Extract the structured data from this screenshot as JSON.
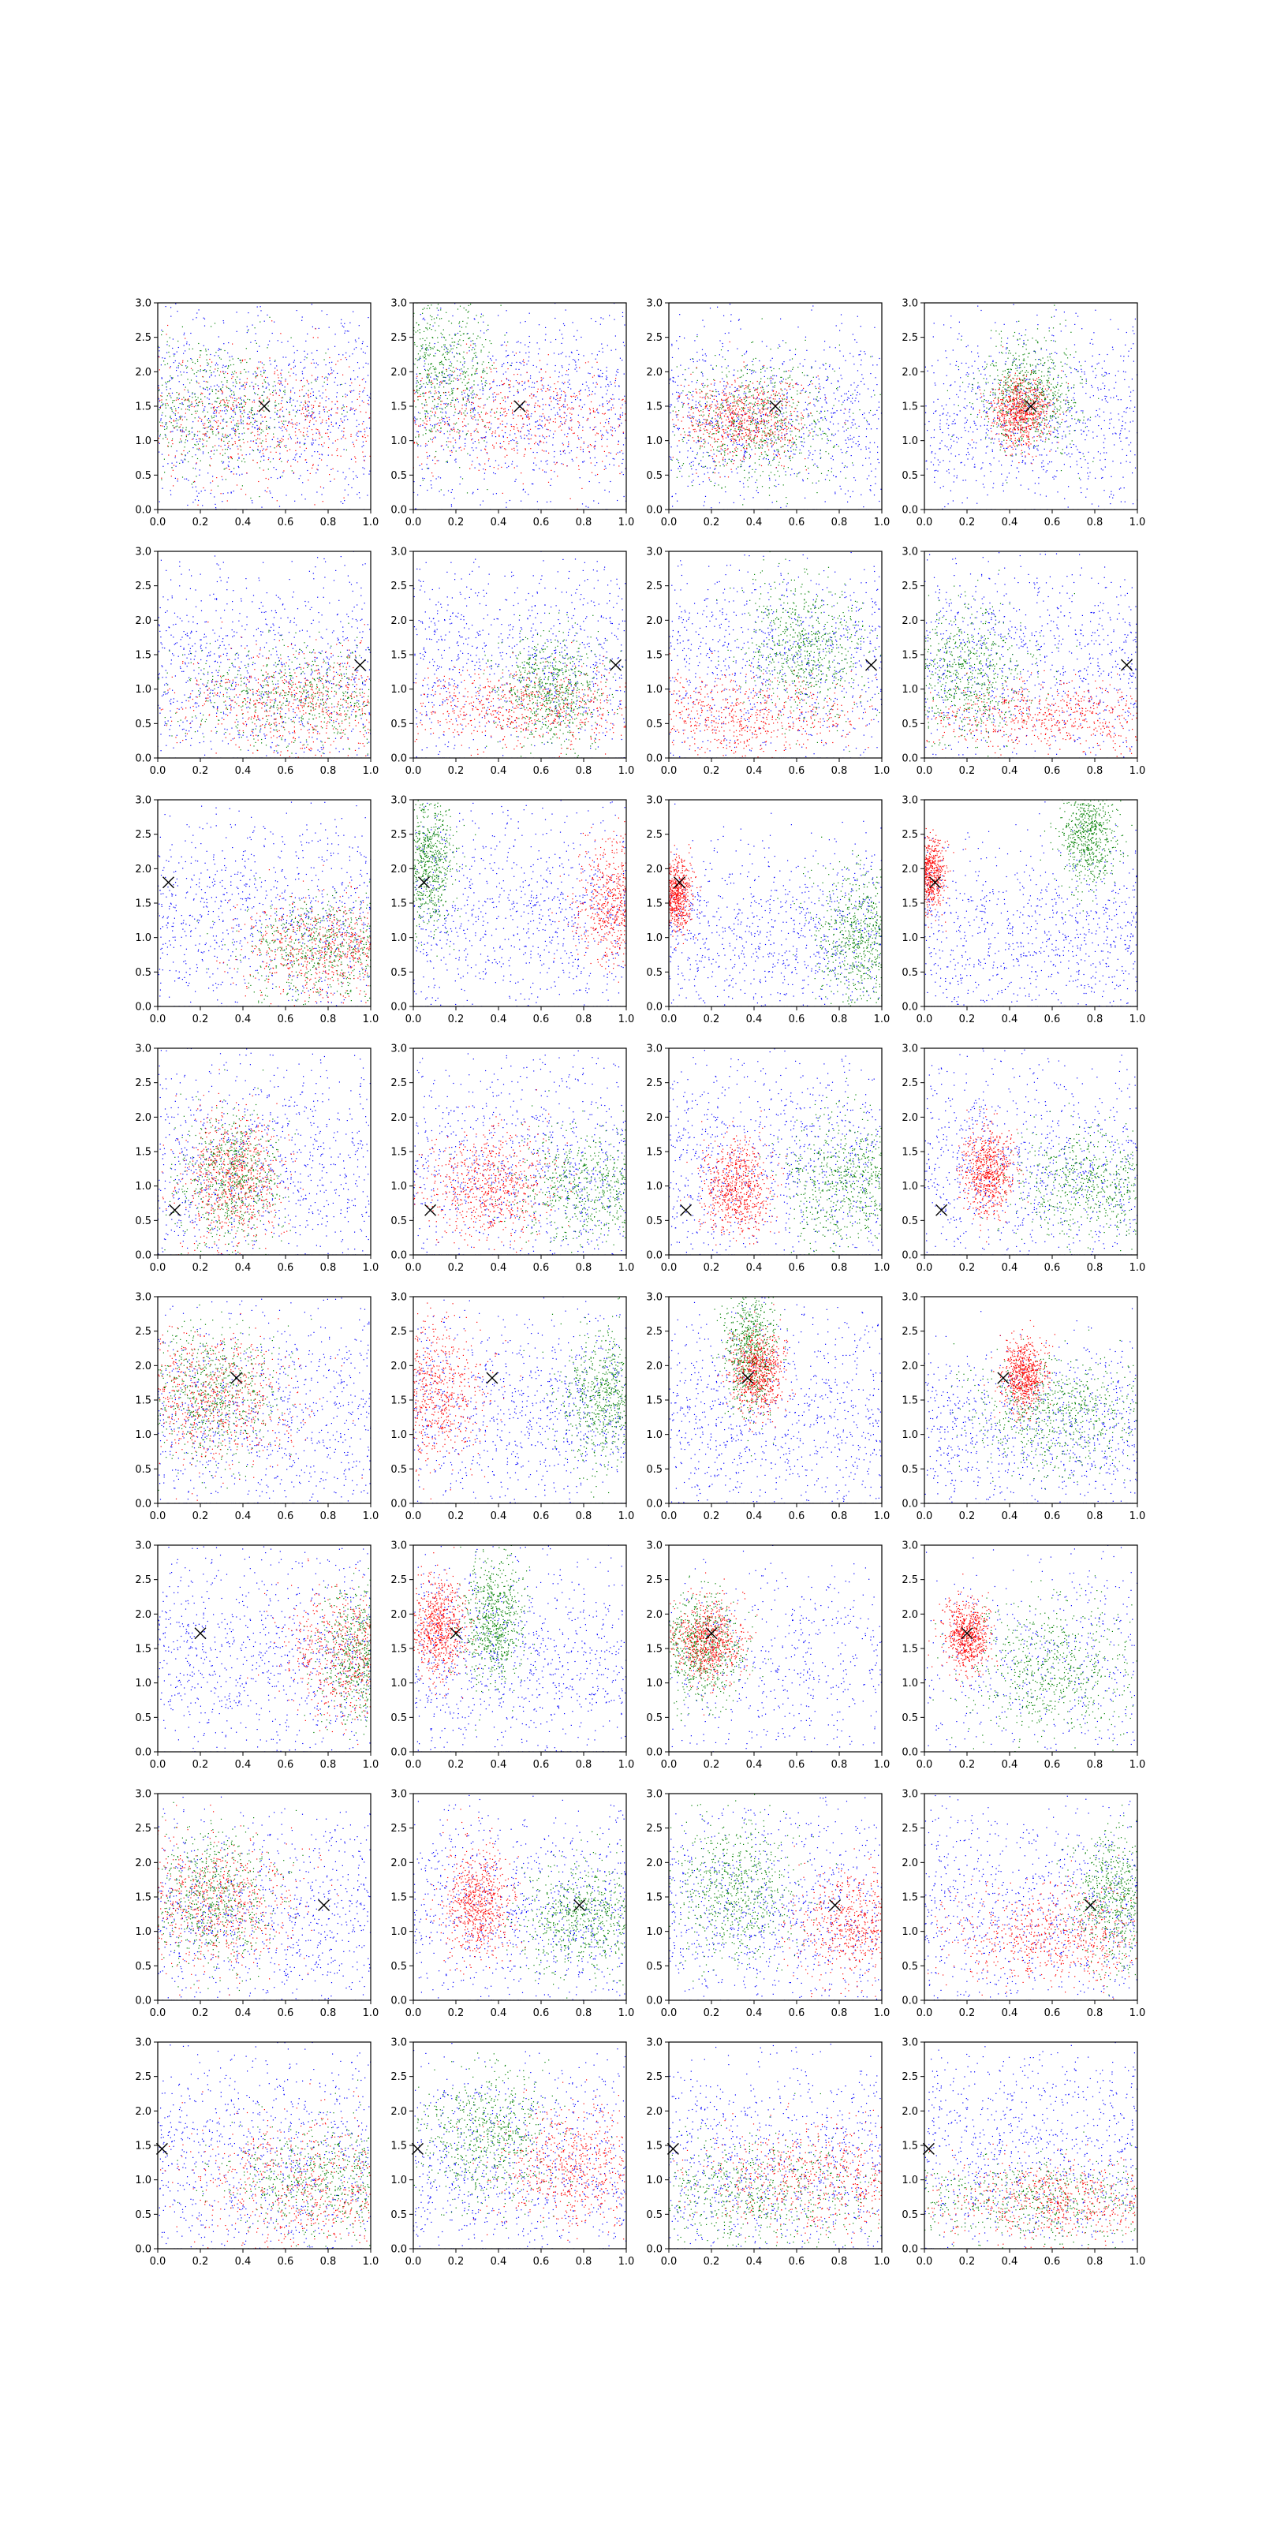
{
  "chart_data": {
    "type": "scatter",
    "layout": {
      "rows": 8,
      "cols": 4
    },
    "xlim": [
      0.0,
      1.0
    ],
    "ylim": [
      0.0,
      3.0
    ],
    "xticks": [
      "0.0",
      "0.2",
      "0.4",
      "0.6",
      "0.8",
      "1.0"
    ],
    "yticks": [
      "0.0",
      "0.5",
      "1.0",
      "1.5",
      "2.0",
      "2.5",
      "3.0"
    ],
    "grid": false,
    "colors": {
      "series_a": "#0000ff",
      "series_b": "#008000",
      "series_c": "#ff0000",
      "marker": "#000000"
    },
    "marker_symbol": "x",
    "panels": [
      {
        "row": 1,
        "col": 1,
        "marker": [
          0.5,
          1.5
        ],
        "clusters": {
          "blue": [
            0.5,
            1.5,
            0.5,
            1.0
          ],
          "green": [
            0.2,
            1.5,
            0.3,
            0.5
          ],
          "red": [
            0.5,
            1.3,
            0.4,
            0.5
          ]
        }
      },
      {
        "row": 1,
        "col": 2,
        "marker": [
          0.5,
          1.5
        ],
        "clusters": {
          "blue": [
            0.5,
            1.5,
            0.5,
            1.0
          ],
          "green": [
            0.1,
            2.0,
            0.15,
            0.5
          ],
          "red": [
            0.5,
            1.3,
            0.4,
            0.4
          ]
        }
      },
      {
        "row": 1,
        "col": 3,
        "marker": [
          0.5,
          1.5
        ],
        "clusters": {
          "blue": [
            0.6,
            1.3,
            0.5,
            0.9
          ],
          "green": [
            0.4,
            1.3,
            0.2,
            0.5
          ],
          "red": [
            0.35,
            1.3,
            0.15,
            0.3
          ]
        }
      },
      {
        "row": 1,
        "col": 4,
        "marker": [
          0.5,
          1.5
        ],
        "clusters": {
          "blue": [
            0.5,
            1.3,
            0.5,
            0.9
          ],
          "green": [
            0.5,
            1.7,
            0.12,
            0.4
          ],
          "red": [
            0.45,
            1.4,
            0.07,
            0.25
          ]
        }
      },
      {
        "row": 2,
        "col": 1,
        "marker": [
          0.95,
          1.35
        ],
        "clusters": {
          "blue": [
            0.5,
            1.3,
            0.5,
            1.0
          ],
          "green": [
            0.7,
            0.9,
            0.3,
            0.4
          ],
          "red": [
            0.7,
            0.8,
            0.3,
            0.4
          ]
        }
      },
      {
        "row": 2,
        "col": 2,
        "marker": [
          0.95,
          1.35
        ],
        "clusters": {
          "blue": [
            0.5,
            1.4,
            0.5,
            1.0
          ],
          "green": [
            0.65,
            1.0,
            0.12,
            0.4
          ],
          "red": [
            0.5,
            0.7,
            0.35,
            0.3
          ]
        }
      },
      {
        "row": 2,
        "col": 3,
        "marker": [
          0.95,
          1.35
        ],
        "clusters": {
          "blue": [
            0.5,
            1.4,
            0.5,
            1.0
          ],
          "green": [
            0.65,
            1.6,
            0.15,
            0.5
          ],
          "red": [
            0.3,
            0.6,
            0.3,
            0.3
          ]
        }
      },
      {
        "row": 2,
        "col": 4,
        "marker": [
          0.95,
          1.35
        ],
        "clusters": {
          "blue": [
            0.5,
            1.4,
            0.5,
            1.0
          ],
          "green": [
            0.2,
            1.2,
            0.15,
            0.5
          ],
          "red": [
            0.6,
            0.6,
            0.35,
            0.25
          ]
        }
      },
      {
        "row": 3,
        "col": 1,
        "marker": [
          0.05,
          1.8
        ],
        "clusters": {
          "blue": [
            0.5,
            1.3,
            0.5,
            1.0
          ],
          "green": [
            0.8,
            0.8,
            0.2,
            0.4
          ],
          "red": [
            0.8,
            0.8,
            0.2,
            0.4
          ]
        }
      },
      {
        "row": 3,
        "col": 2,
        "marker": [
          0.05,
          1.8
        ],
        "clusters": {
          "blue": [
            0.5,
            1.4,
            0.5,
            1.0
          ],
          "green": [
            0.07,
            2.1,
            0.06,
            0.45
          ],
          "red": [
            0.95,
            1.5,
            0.1,
            0.45
          ]
        }
      },
      {
        "row": 3,
        "col": 3,
        "marker": [
          0.05,
          1.8
        ],
        "clusters": {
          "blue": [
            0.5,
            1.0,
            0.5,
            0.8
          ],
          "green": [
            0.9,
            1.0,
            0.1,
            0.5
          ],
          "red": [
            0.03,
            1.6,
            0.04,
            0.25
          ]
        }
      },
      {
        "row": 3,
        "col": 4,
        "marker": [
          0.05,
          1.8
        ],
        "clusters": {
          "blue": [
            0.5,
            1.0,
            0.5,
            0.9
          ],
          "green": [
            0.77,
            2.5,
            0.06,
            0.4
          ],
          "red": [
            0.02,
            1.9,
            0.04,
            0.25
          ]
        }
      },
      {
        "row": 4,
        "col": 1,
        "marker": [
          0.08,
          0.65
        ],
        "clusters": {
          "blue": [
            0.5,
            1.3,
            0.5,
            1.0
          ],
          "green": [
            0.35,
            1.1,
            0.12,
            0.5
          ],
          "red": [
            0.35,
            1.1,
            0.12,
            0.5
          ]
        }
      },
      {
        "row": 4,
        "col": 2,
        "marker": [
          0.08,
          0.65
        ],
        "clusters": {
          "blue": [
            0.5,
            1.3,
            0.5,
            1.0
          ],
          "green": [
            0.85,
            1.0,
            0.2,
            0.4
          ],
          "red": [
            0.35,
            1.0,
            0.15,
            0.4
          ]
        }
      },
      {
        "row": 4,
        "col": 3,
        "marker": [
          0.08,
          0.65
        ],
        "clusters": {
          "blue": [
            0.5,
            1.3,
            0.5,
            1.0
          ],
          "green": [
            0.85,
            1.1,
            0.15,
            0.45
          ],
          "red": [
            0.32,
            1.0,
            0.08,
            0.35
          ]
        }
      },
      {
        "row": 4,
        "col": 4,
        "marker": [
          0.08,
          0.65
        ],
        "clusters": {
          "blue": [
            0.5,
            1.3,
            0.5,
            1.0
          ],
          "green": [
            0.8,
            1.0,
            0.2,
            0.4
          ],
          "red": [
            0.3,
            1.2,
            0.06,
            0.3
          ]
        }
      },
      {
        "row": 5,
        "col": 1,
        "marker": [
          0.37,
          1.82
        ],
        "clusters": {
          "blue": [
            0.5,
            1.2,
            0.5,
            1.0
          ],
          "green": [
            0.25,
            1.6,
            0.15,
            0.5
          ],
          "red": [
            0.25,
            1.5,
            0.2,
            0.5
          ]
        }
      },
      {
        "row": 5,
        "col": 2,
        "marker": [
          0.37,
          1.82
        ],
        "clusters": {
          "blue": [
            0.5,
            1.3,
            0.5,
            1.0
          ],
          "green": [
            0.9,
            1.5,
            0.1,
            0.5
          ],
          "red": [
            0.1,
            1.6,
            0.12,
            0.5
          ]
        }
      },
      {
        "row": 5,
        "col": 3,
        "marker": [
          0.37,
          1.82
        ],
        "clusters": {
          "blue": [
            0.5,
            1.2,
            0.5,
            1.0
          ],
          "green": [
            0.38,
            2.2,
            0.06,
            0.45
          ],
          "red": [
            0.42,
            1.9,
            0.06,
            0.3
          ]
        }
      },
      {
        "row": 5,
        "col": 4,
        "marker": [
          0.37,
          1.82
        ],
        "clusters": {
          "blue": [
            0.5,
            1.0,
            0.5,
            0.8
          ],
          "green": [
            0.6,
            1.3,
            0.2,
            0.4
          ],
          "red": [
            0.47,
            1.85,
            0.05,
            0.25
          ]
        }
      },
      {
        "row": 6,
        "col": 1,
        "marker": [
          0.2,
          1.72
        ],
        "clusters": {
          "blue": [
            0.5,
            1.4,
            0.5,
            1.0
          ],
          "green": [
            0.95,
            1.4,
            0.1,
            0.5
          ],
          "red": [
            0.9,
            1.4,
            0.15,
            0.5
          ]
        }
      },
      {
        "row": 6,
        "col": 2,
        "marker": [
          0.2,
          1.72
        ],
        "clusters": {
          "blue": [
            0.5,
            1.3,
            0.5,
            1.0
          ],
          "green": [
            0.38,
            1.9,
            0.07,
            0.45
          ],
          "red": [
            0.12,
            1.8,
            0.06,
            0.35
          ]
        }
      },
      {
        "row": 6,
        "col": 3,
        "marker": [
          0.2,
          1.72
        ],
        "clusters": {
          "blue": [
            0.6,
            1.2,
            0.4,
            0.9
          ],
          "green": [
            0.15,
            1.5,
            0.1,
            0.4
          ],
          "red": [
            0.18,
            1.6,
            0.08,
            0.3
          ]
        }
      },
      {
        "row": 6,
        "col": 4,
        "marker": [
          0.2,
          1.72
        ],
        "clusters": {
          "blue": [
            0.6,
            1.2,
            0.4,
            0.9
          ],
          "green": [
            0.6,
            1.2,
            0.2,
            0.5
          ],
          "red": [
            0.2,
            1.7,
            0.05,
            0.25
          ]
        }
      },
      {
        "row": 7,
        "col": 1,
        "marker": [
          0.78,
          1.38
        ],
        "clusters": {
          "blue": [
            0.5,
            1.2,
            0.5,
            1.0
          ],
          "green": [
            0.25,
            1.5,
            0.15,
            0.5
          ],
          "red": [
            0.25,
            1.4,
            0.2,
            0.5
          ]
        }
      },
      {
        "row": 7,
        "col": 2,
        "marker": [
          0.78,
          1.38
        ],
        "clusters": {
          "blue": [
            0.5,
            1.3,
            0.5,
            1.0
          ],
          "green": [
            0.8,
            1.2,
            0.15,
            0.4
          ],
          "red": [
            0.3,
            1.4,
            0.08,
            0.4
          ]
        }
      },
      {
        "row": 7,
        "col": 3,
        "marker": [
          0.78,
          1.38
        ],
        "clusters": {
          "blue": [
            0.5,
            1.3,
            0.5,
            1.0
          ],
          "green": [
            0.3,
            1.6,
            0.15,
            0.5
          ],
          "red": [
            0.9,
            1.1,
            0.15,
            0.4
          ]
        }
      },
      {
        "row": 7,
        "col": 4,
        "marker": [
          0.78,
          1.38
        ],
        "clusters": {
          "blue": [
            0.5,
            1.3,
            0.5,
            1.0
          ],
          "green": [
            0.9,
            1.5,
            0.1,
            0.5
          ],
          "red": [
            0.6,
            0.9,
            0.25,
            0.35
          ]
        }
      },
      {
        "row": 8,
        "col": 1,
        "marker": [
          0.02,
          1.45
        ],
        "clusters": {
          "blue": [
            0.5,
            1.3,
            0.5,
            1.0
          ],
          "green": [
            0.8,
            1.0,
            0.25,
            0.4
          ],
          "red": [
            0.7,
            0.9,
            0.3,
            0.5
          ]
        }
      },
      {
        "row": 8,
        "col": 2,
        "marker": [
          0.02,
          1.45
        ],
        "clusters": {
          "blue": [
            0.5,
            1.2,
            0.5,
            1.0
          ],
          "green": [
            0.35,
            1.6,
            0.15,
            0.5
          ],
          "red": [
            0.8,
            1.2,
            0.2,
            0.45
          ]
        }
      },
      {
        "row": 8,
        "col": 3,
        "marker": [
          0.02,
          1.45
        ],
        "clusters": {
          "blue": [
            0.5,
            1.2,
            0.5,
            1.0
          ],
          "green": [
            0.4,
            0.8,
            0.3,
            0.4
          ],
          "red": [
            0.7,
            1.0,
            0.3,
            0.4
          ]
        }
      },
      {
        "row": 8,
        "col": 4,
        "marker": [
          0.02,
          1.45
        ],
        "clusters": {
          "blue": [
            0.5,
            1.4,
            0.5,
            1.0
          ],
          "green": [
            0.5,
            0.7,
            0.4,
            0.3
          ],
          "red": [
            0.65,
            0.7,
            0.3,
            0.3
          ]
        }
      }
    ]
  }
}
